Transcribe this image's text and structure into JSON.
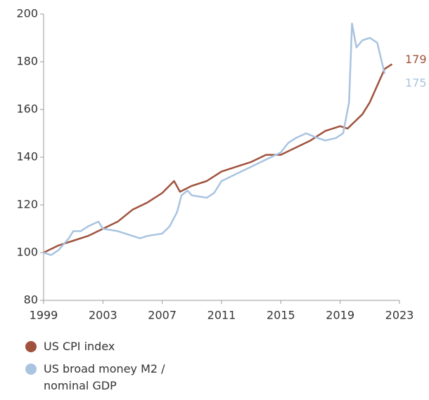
{
  "chart_data": {
    "type": "line",
    "series": [
      {
        "name": "US CPI index",
        "color": "#a0523d",
        "x": [
          1999,
          2000,
          2001,
          2002,
          2003,
          2004,
          2005,
          2006,
          2007,
          2007.8,
          2008.2,
          2009,
          2010,
          2011,
          2012,
          2013,
          2014,
          2015,
          2016,
          2017,
          2018,
          2019,
          2019.5,
          2020,
          2020.5,
          2021,
          2021.5,
          2022,
          2022.5
        ],
        "values": [
          100,
          103,
          105,
          107,
          110,
          113,
          118,
          121,
          125,
          130,
          125.5,
          128,
          130,
          134,
          136,
          138,
          141,
          141,
          144,
          147,
          151,
          153,
          152,
          155,
          158,
          163,
          170,
          177,
          179
        ]
      },
      {
        "name": "US broad money M2 / nominal GDP",
        "color": "#a9c3e0",
        "x": [
          1999,
          1999.5,
          2000,
          2000.7,
          2001,
          2001.5,
          2002,
          2002.7,
          2003,
          2004,
          2005,
          2005.5,
          2006,
          2007,
          2007.5,
          2008,
          2008.3,
          2008.7,
          2009,
          2010,
          2010.5,
          2011,
          2012,
          2013,
          2014,
          2015,
          2015.5,
          2016,
          2016.7,
          2017.5,
          2018,
          2018.7,
          2019.2,
          2019.6,
          2019.8,
          2020.1,
          2020.5,
          2021,
          2021.5,
          2022
        ],
        "values": [
          100,
          99,
          101,
          106,
          109,
          109,
          111,
          113,
          110,
          109,
          107,
          106,
          107,
          108,
          111,
          117,
          124,
          126,
          124,
          123,
          125,
          130,
          133,
          136,
          139,
          142,
          146,
          148,
          150,
          148,
          147,
          148,
          150,
          163,
          196,
          186,
          189,
          190,
          188,
          175
        ]
      }
    ],
    "xlim": [
      1999,
      2023
    ],
    "xticks": [
      1999,
      2003,
      2007,
      2011,
      2015,
      2019,
      2023
    ],
    "ylim": [
      80,
      200
    ],
    "yticks": [
      80,
      100,
      120,
      140,
      160,
      180,
      200
    ]
  }
}
